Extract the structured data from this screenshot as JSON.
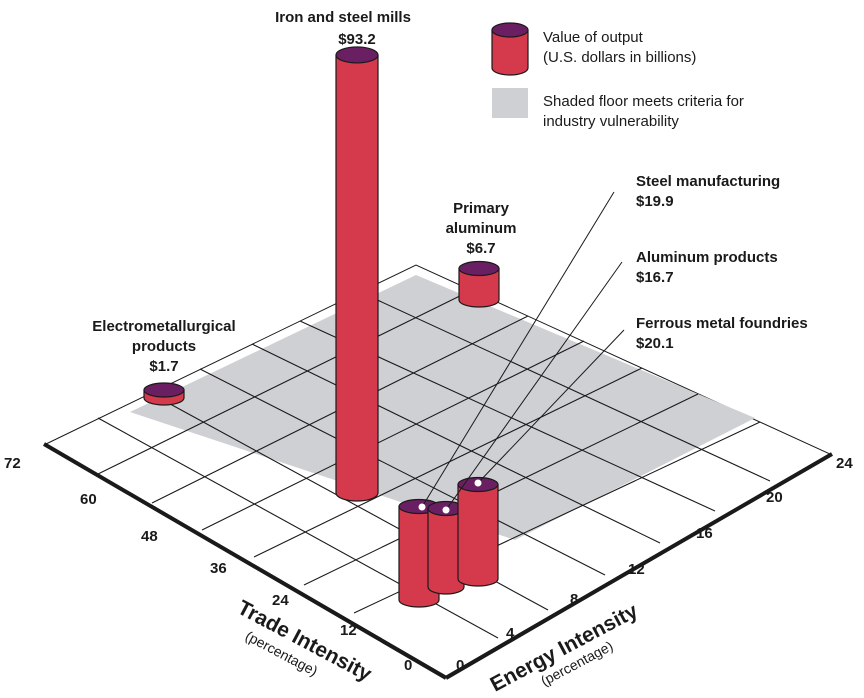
{
  "colors": {
    "cylinder_body": "#d43a4b",
    "cylinder_top": "#6b1f63",
    "shaded_floor": "#cfd0d4",
    "grid_line": "#1a1a1a"
  },
  "legend": {
    "value_label_line1": "Value of output",
    "value_label_line2": "(U.S. dollars in billions)",
    "shaded_label_line1": "Shaded floor meets criteria for",
    "shaded_label_line2": "industry vulnerability"
  },
  "axes": {
    "trade_title": "Trade Intensity",
    "trade_subtitle": "(percentage)",
    "energy_title": "Energy Intensity",
    "energy_subtitle": "(percentage)",
    "trade_ticks": [
      "0",
      "12",
      "24",
      "36",
      "48",
      "60",
      "72"
    ],
    "energy_ticks": [
      "0",
      "4",
      "8",
      "12",
      "16",
      "20",
      "24"
    ]
  },
  "labels": {
    "iron_name": "Iron and steel mills",
    "iron_value": "$93.2",
    "primary_name1": "Primary",
    "primary_name2": "aluminum",
    "primary_value": "$6.7",
    "electro_name1": "Electrometallurgical",
    "electro_name2": "products",
    "electro_value": "$1.7",
    "steel_name": "Steel manufacturing",
    "steel_value": "$19.9",
    "aluminum_name": "Aluminum products",
    "aluminum_value": "$16.7",
    "ferrous_name": "Ferrous metal foundries",
    "ferrous_value": "$20.1"
  },
  "chart_data": {
    "type": "3d-bar",
    "x_axis": {
      "label": "Trade Intensity",
      "unit": "(percentage)",
      "range": [
        0,
        72
      ]
    },
    "y_axis": {
      "label": "Energy Intensity",
      "unit": "(percentage)",
      "range": [
        0,
        24
      ]
    },
    "value_unit": "U.S. dollars in billions",
    "series": [
      {
        "name": "Iron and steel mills",
        "value": 93.2,
        "trade": 33,
        "energy": 1.5
      },
      {
        "name": "Primary aluminum",
        "value": 6.7,
        "trade": 58,
        "energy": 21
      },
      {
        "name": "Electrometallurgical products",
        "value": 1.7,
        "trade": 70,
        "energy": 3
      },
      {
        "name": "Steel manufacturing",
        "value": 19.9,
        "trade": 9,
        "energy": 6
      },
      {
        "name": "Aluminum products",
        "value": 16.7,
        "trade": 10,
        "energy": 7.5
      },
      {
        "name": "Ferrous metal foundries",
        "value": 20.1,
        "trade": 12,
        "energy": 10
      }
    ]
  }
}
